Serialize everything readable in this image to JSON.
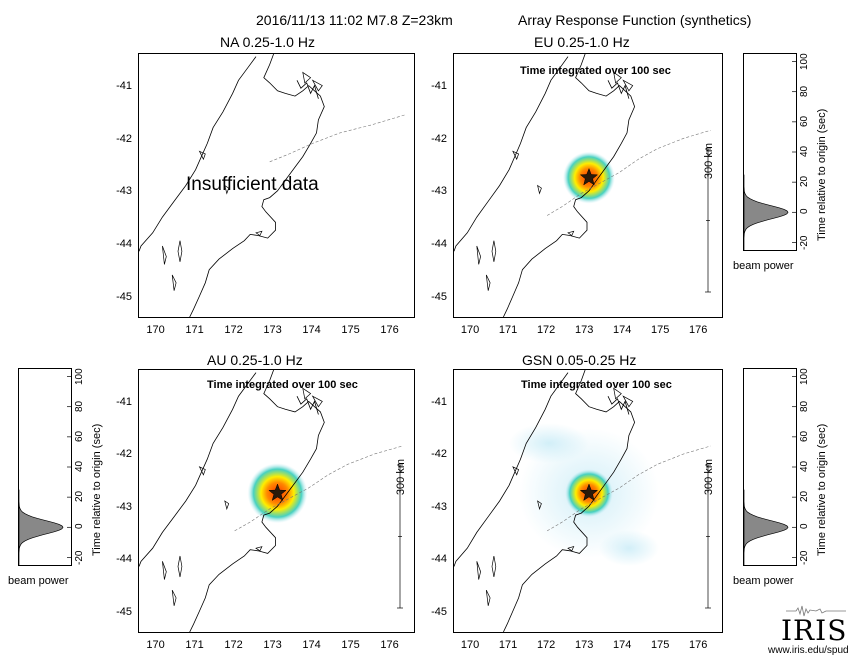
{
  "header": {
    "event": "2016/11/13 11:02  M7.8  Z=23km",
    "product": "Array Response Function (synthetics)"
  },
  "panels": [
    {
      "id": "na",
      "title": "NA  0.25-1.0 Hz",
      "note": "",
      "message": "Insufficient data",
      "scale_label": ""
    },
    {
      "id": "eu",
      "title": "EU  0.25-1.0 Hz",
      "note": "Time integrated over 100 sec",
      "message": "",
      "scale_label": "300 km"
    },
    {
      "id": "au",
      "title": "AU  0.25-1.0 Hz",
      "note": "Time integrated over 100 sec",
      "message": "",
      "scale_label": "300 km"
    },
    {
      "id": "gsn",
      "title": "GSN  0.05-0.25 Hz",
      "note": "Time integrated over 100 sec",
      "message": "",
      "scale_label": "300 km"
    }
  ],
  "map_axes": {
    "lat_ticks": [
      "-41",
      "-42",
      "-43",
      "-44",
      "-45"
    ],
    "lon_ticks": [
      "170",
      "171",
      "172",
      "173",
      "174",
      "175",
      "176"
    ]
  },
  "epicenter": {
    "lat": -42.7,
    "lon": 173.1
  },
  "beam_plot": {
    "ticks": [
      "-20",
      "0",
      "20",
      "40",
      "60",
      "80",
      "100"
    ],
    "ylabel": "Time relative to origin (sec)",
    "xlabel": "beam power"
  },
  "logo": {
    "name": "IRIS",
    "url": "www.iris.edu/spud"
  },
  "colors": {
    "hot_center": "#ff3300",
    "warm": "#ffee00",
    "cool": "#33ccbb",
    "halo": "#bfe8f5",
    "star": "#2a1a0a"
  }
}
